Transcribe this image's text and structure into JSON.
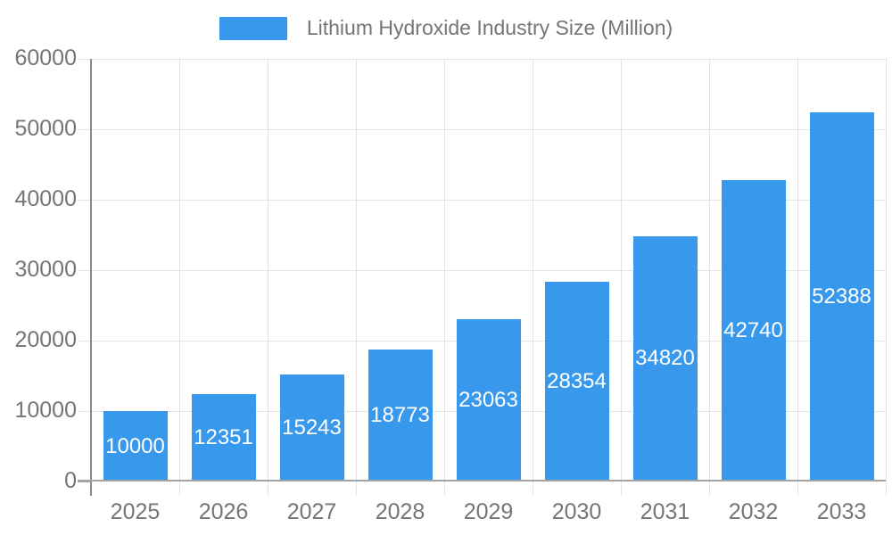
{
  "chart_data": {
    "type": "bar",
    "title": "Lithium Hydroxide Industry Size (Million)",
    "legend": {
      "label": "Lithium Hydroxide Industry Size (Million)",
      "position": "top"
    },
    "categories": [
      "2025",
      "2026",
      "2027",
      "2028",
      "2029",
      "2030",
      "2031",
      "2032",
      "2033"
    ],
    "values": [
      10000,
      12351,
      15243,
      18773,
      23063,
      28354,
      34820,
      42740,
      52388
    ],
    "value_labels": [
      "10000",
      "12351",
      "15243",
      "18773",
      "23063",
      "28354",
      "34820",
      "42740",
      "52388"
    ],
    "xlabel": "",
    "ylabel": "",
    "ylim": [
      0,
      60000
    ],
    "yticks": [
      0,
      10000,
      20000,
      30000,
      40000,
      50000,
      60000
    ],
    "grid": true,
    "value_labels_inside_bars": true,
    "colors": {
      "bar": "#3898EC",
      "value_text": "#FFFFFF",
      "axis_labels": "#757575",
      "legend_text": "#757575",
      "gridline": "#E3E3E3",
      "y_axis_line": "#8A8A8A",
      "baseline": "#A3A3A3",
      "background": "#FFFFFF"
    }
  }
}
